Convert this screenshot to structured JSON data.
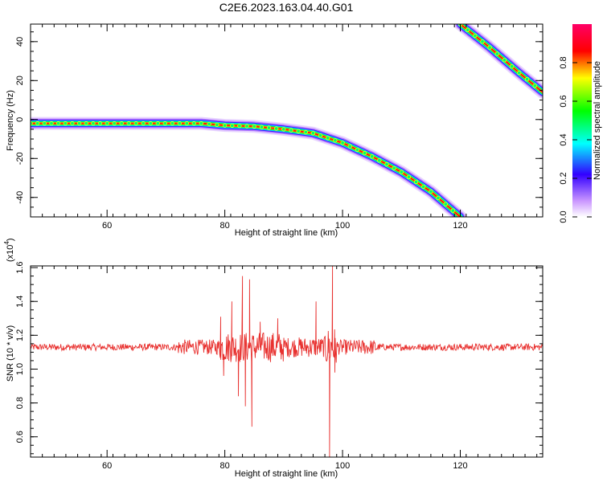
{
  "figure_title": "C2E6.2023.163.04.40.G01",
  "chart_data": [
    {
      "type": "heatmap",
      "description_kind": "time-frequency spectrogram",
      "xlabel": "Height of straight line (km)",
      "ylabel": "Frequency (Hz)",
      "xlim": [
        47,
        134
      ],
      "ylim": [
        -50,
        49
      ],
      "xticks": [
        60,
        80,
        100,
        120
      ],
      "yticks": [
        -40,
        -20,
        0,
        20,
        40
      ],
      "colorbar": {
        "label": "Normalized spectral amplitude",
        "range": [
          0,
          1
        ],
        "ticks": [
          "0.0",
          "0.2",
          "0.4",
          "0.6",
          "0.8"
        ],
        "colors": [
          "#ffffff",
          "#cc99ff",
          "#3300ff",
          "#00ffff",
          "#00ff00",
          "#ffff00",
          "#ff0000",
          "#ff0066"
        ]
      },
      "ridges": [
        {
          "x": [
            47,
            60,
            76,
            80,
            85,
            90,
            95,
            100,
            105,
            110,
            115,
            120
          ],
          "y": [
            -2,
            -2,
            -2,
            -3,
            -3.5,
            -5,
            -7,
            -12,
            -19,
            -27,
            -37,
            -50
          ]
        },
        {
          "x": [
            120,
            125,
            130,
            134
          ],
          "y": [
            49,
            37,
            24,
            14
          ]
        }
      ]
    },
    {
      "type": "line",
      "xlabel": "Height of straight line (km)",
      "ylabel": "SNR (10 * v/v)",
      "y_multiplier": "(x10",
      "y_multiplier_exp": "4",
      "y_multiplier_close": ")",
      "xlim": [
        47,
        134
      ],
      "ylim": [
        0.48,
        1.61
      ],
      "xticks": [
        60,
        80,
        100,
        120
      ],
      "yticks": [
        "0.6",
        "0.8",
        "1.0",
        "1.2",
        "1.4",
        "1.6"
      ],
      "line_color": "#e8312f",
      "baseline": 1.13,
      "features": [
        {
          "x": 79.3,
          "y": 1.31
        },
        {
          "x": 79.8,
          "y": 0.96
        },
        {
          "x": 81.2,
          "y": 1.4
        },
        {
          "x": 82.3,
          "y": 0.84
        },
        {
          "x": 83.0,
          "y": 1.55
        },
        {
          "x": 83.5,
          "y": 0.78
        },
        {
          "x": 84.2,
          "y": 1.53
        },
        {
          "x": 84.6,
          "y": 0.66
        },
        {
          "x": 86.0,
          "y": 1.28
        },
        {
          "x": 89.0,
          "y": 1.3
        },
        {
          "x": 95.5,
          "y": 1.4
        },
        {
          "x": 97.8,
          "y": 0.48
        },
        {
          "x": 98.3,
          "y": 1.61
        },
        {
          "x": 98.7,
          "y": 0.98
        }
      ]
    }
  ]
}
